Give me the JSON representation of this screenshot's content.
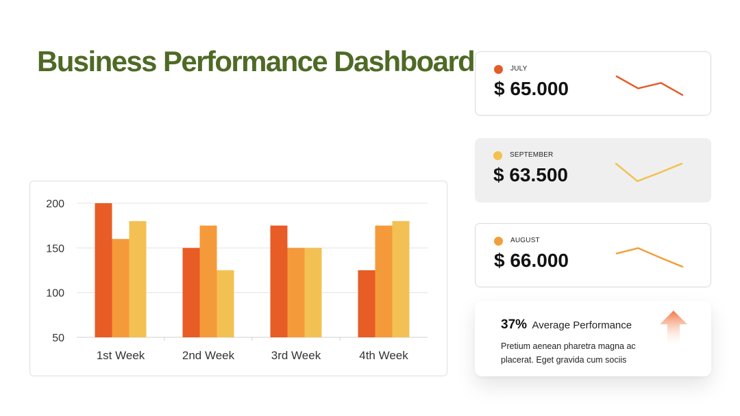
{
  "title": "Business Performance Dashboard",
  "colors": {
    "title": "#4e6a25",
    "series_1": "#e85c25",
    "series_2": "#f59a3a",
    "series_3": "#f3c153",
    "july": "#e35d29",
    "september": "#f2c14f",
    "august": "#f29e3a",
    "arrow": "#f07640"
  },
  "chart_data": {
    "type": "bar",
    "categories": [
      "1st Week",
      "2nd Week",
      "3rd Week",
      "4th Week"
    ],
    "series": [
      {
        "values": [
          200,
          150,
          175,
          125
        ]
      },
      {
        "values": [
          160,
          175,
          150,
          175
        ]
      },
      {
        "values": [
          180,
          125,
          150,
          180
        ]
      }
    ],
    "title": "",
    "xlabel": "",
    "ylabel": "",
    "ylim": [
      50,
      200
    ],
    "yticks": [
      50,
      100,
      150,
      200
    ],
    "grid": true,
    "legend": "none"
  },
  "cards": [
    {
      "month": "JULY",
      "amount": "$ 65.000",
      "sparkline_trend": [
        0.95,
        0.4,
        0.65,
        0.1
      ]
    },
    {
      "month": "SEPTEMBER",
      "amount": "$ 63.500",
      "sparkline_trend": [
        0.9,
        0.1,
        0.5,
        0.9
      ]
    },
    {
      "month": "AUGUST",
      "amount": "$ 66.000",
      "sparkline_trend": [
        0.7,
        0.95,
        0.5,
        0.1
      ]
    }
  ],
  "performance": {
    "percent": "37%",
    "label": "Average Performance",
    "description": "Pretium aenean pharetra magna ac placerat. Eget gravida cum sociis",
    "icon": "arrow-up-icon"
  }
}
